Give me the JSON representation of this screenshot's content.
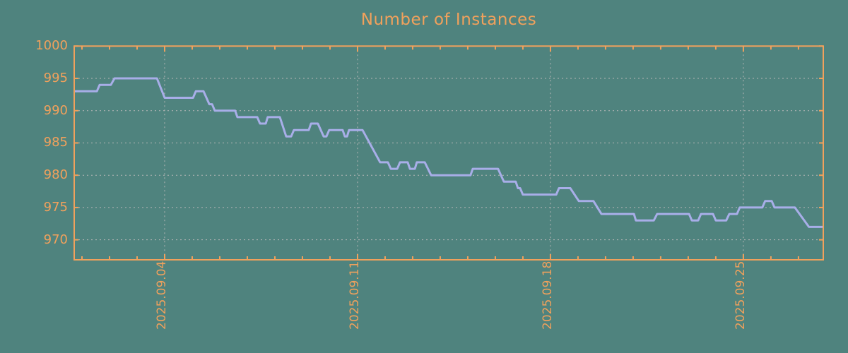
{
  "chart": {
    "title": "Number of Instances"
  },
  "colors": {
    "background": "#4f837e",
    "axis_orange": "#f1a15c",
    "line_lavender": "#a8aee8",
    "grid_gray": "#b7b7b7"
  },
  "chart_data": {
    "type": "line",
    "title": "Number of Instances",
    "xlabel": "",
    "ylabel": "",
    "legend": "none",
    "grid": "dotted",
    "x_unit": "days since 2025-09-01 00:00",
    "xlim": [
      -0.282,
      26.9
    ],
    "ylim": [
      966.9,
      1000
    ],
    "yticks": [
      970,
      975,
      980,
      985,
      990,
      995,
      1000
    ],
    "xticks": [
      {
        "d": 3,
        "label": "2025.09.04"
      },
      {
        "d": 10,
        "label": "2025.09.11"
      },
      {
        "d": 17,
        "label": "2025.09.18"
      },
      {
        "d": 24,
        "label": "2025.09.25"
      }
    ],
    "minor_xtick_every_days": 1,
    "points": [
      [
        -0.28,
        993
      ],
      [
        0.54,
        993
      ],
      [
        0.64,
        994
      ],
      [
        1.05,
        994
      ],
      [
        1.18,
        995
      ],
      [
        2.72,
        995
      ],
      [
        3.0,
        992
      ],
      [
        4.03,
        992
      ],
      [
        4.13,
        993
      ],
      [
        4.41,
        993
      ],
      [
        4.62,
        991
      ],
      [
        4.72,
        991
      ],
      [
        4.82,
        990
      ],
      [
        5.56,
        990
      ],
      [
        5.64,
        989
      ],
      [
        6.36,
        989
      ],
      [
        6.46,
        988
      ],
      [
        6.67,
        988
      ],
      [
        6.74,
        989
      ],
      [
        7.18,
        989
      ],
      [
        7.41,
        986
      ],
      [
        7.59,
        986
      ],
      [
        7.69,
        987
      ],
      [
        8.23,
        987
      ],
      [
        8.31,
        988
      ],
      [
        8.56,
        988
      ],
      [
        8.77,
        986
      ],
      [
        8.87,
        986
      ],
      [
        8.97,
        987
      ],
      [
        9.46,
        987
      ],
      [
        9.54,
        986
      ],
      [
        9.62,
        986
      ],
      [
        9.69,
        987
      ],
      [
        10.18,
        987
      ],
      [
        10.82,
        982
      ],
      [
        11.1,
        982
      ],
      [
        11.21,
        981
      ],
      [
        11.44,
        981
      ],
      [
        11.54,
        982
      ],
      [
        11.82,
        982
      ],
      [
        11.9,
        981
      ],
      [
        12.08,
        981
      ],
      [
        12.15,
        982
      ],
      [
        12.44,
        982
      ],
      [
        12.67,
        980
      ],
      [
        14.1,
        980
      ],
      [
        14.18,
        981
      ],
      [
        15.1,
        981
      ],
      [
        15.31,
        979
      ],
      [
        15.74,
        979
      ],
      [
        15.82,
        978
      ],
      [
        15.9,
        978
      ],
      [
        16.0,
        977
      ],
      [
        17.21,
        977
      ],
      [
        17.31,
        978
      ],
      [
        17.72,
        978
      ],
      [
        18.03,
        976
      ],
      [
        18.56,
        976
      ],
      [
        18.85,
        974
      ],
      [
        20.03,
        974
      ],
      [
        20.1,
        973
      ],
      [
        20.75,
        973
      ],
      [
        20.87,
        974
      ],
      [
        22.03,
        974
      ],
      [
        22.13,
        973
      ],
      [
        22.36,
        973
      ],
      [
        22.46,
        974
      ],
      [
        22.9,
        974
      ],
      [
        23.0,
        973
      ],
      [
        23.38,
        973
      ],
      [
        23.49,
        974
      ],
      [
        23.77,
        974
      ],
      [
        23.87,
        975
      ],
      [
        24.69,
        975
      ],
      [
        24.79,
        976
      ],
      [
        25.03,
        976
      ],
      [
        25.13,
        975
      ],
      [
        25.87,
        975
      ],
      [
        26.38,
        972
      ],
      [
        26.9,
        972
      ]
    ]
  }
}
